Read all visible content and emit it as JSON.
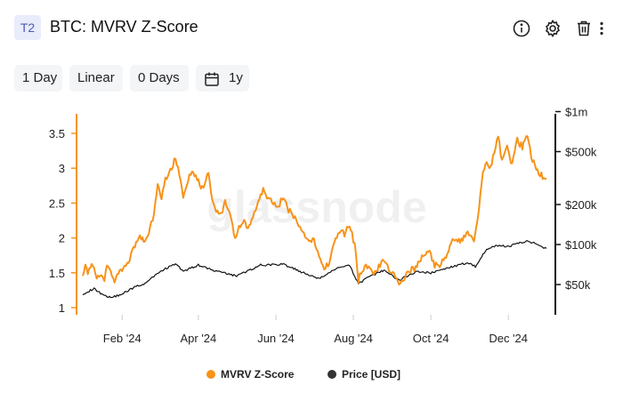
{
  "header": {
    "tag": "T2",
    "title": "BTC: MVRV Z-Score",
    "icons": [
      "info-icon",
      "gear-icon",
      "trash-icon",
      "more-vertical-icon"
    ]
  },
  "controls": {
    "resolution": "1 Day",
    "scale": "Linear",
    "moving_average": "0 Days",
    "range": "1y",
    "range_icon": "calendar-icon"
  },
  "watermark": "glassnode",
  "colors": {
    "mvrv": "#f7931a",
    "price": "#111111",
    "grid": "#e6e6e6",
    "text": "#222222"
  },
  "chart_data": {
    "type": "line",
    "title": "BTC: MVRV Z-Score",
    "x_ticks": [
      "Feb '24",
      "Apr '24",
      "Jun '24",
      "Aug '24",
      "Oct '24",
      "Dec '24"
    ],
    "x_range": [
      "2024-01-01",
      "2024-12-31"
    ],
    "y_left": {
      "ticks": [
        "1",
        "1.5",
        "2",
        "2.5",
        "3",
        "3.5"
      ],
      "range": [
        1,
        3.5
      ]
    },
    "y_right": {
      "ticks": [
        "$50k",
        "$100k",
        "$200k",
        "$500k",
        "$1m"
      ],
      "values": [
        50000,
        100000,
        200000,
        500000,
        1000000
      ],
      "scale": "log"
    },
    "legend_position": "bottom-center",
    "grid": false,
    "series": [
      {
        "name": "MVRV Z-Score",
        "axis": "left",
        "color": "#f7931a",
        "points": [
          [
            "2024-01-01",
            1.5
          ],
          [
            "2024-01-03",
            1.58
          ],
          [
            "2024-01-05",
            1.52
          ],
          [
            "2024-01-08",
            1.62
          ],
          [
            "2024-01-10",
            1.58
          ],
          [
            "2024-01-12",
            1.42
          ],
          [
            "2024-01-15",
            1.45
          ],
          [
            "2024-01-18",
            1.41
          ],
          [
            "2024-01-20",
            1.62
          ],
          [
            "2024-01-23",
            1.52
          ],
          [
            "2024-01-25",
            1.38
          ],
          [
            "2024-01-28",
            1.45
          ],
          [
            "2024-02-01",
            1.55
          ],
          [
            "2024-02-05",
            1.6
          ],
          [
            "2024-02-08",
            1.75
          ],
          [
            "2024-02-12",
            1.95
          ],
          [
            "2024-02-15",
            2.0
          ],
          [
            "2024-02-18",
            1.95
          ],
          [
            "2024-02-22",
            2.05
          ],
          [
            "2024-02-26",
            2.35
          ],
          [
            "2024-02-29",
            2.75
          ],
          [
            "2024-03-03",
            2.55
          ],
          [
            "2024-03-06",
            2.85
          ],
          [
            "2024-03-09",
            2.95
          ],
          [
            "2024-03-12",
            3.05
          ],
          [
            "2024-03-14",
            3.15
          ],
          [
            "2024-03-17",
            2.9
          ],
          [
            "2024-03-20",
            2.62
          ],
          [
            "2024-03-24",
            2.85
          ],
          [
            "2024-03-28",
            2.95
          ],
          [
            "2024-04-01",
            2.8
          ],
          [
            "2024-04-05",
            2.7
          ],
          [
            "2024-04-09",
            2.95
          ],
          [
            "2024-04-12",
            2.55
          ],
          [
            "2024-04-15",
            2.4
          ],
          [
            "2024-04-19",
            2.35
          ],
          [
            "2024-04-22",
            2.5
          ],
          [
            "2024-04-26",
            2.3
          ],
          [
            "2024-04-30",
            2.0
          ],
          [
            "2024-05-03",
            2.15
          ],
          [
            "2024-05-07",
            2.25
          ],
          [
            "2024-05-10",
            2.1
          ],
          [
            "2024-05-14",
            2.3
          ],
          [
            "2024-05-18",
            2.55
          ],
          [
            "2024-05-22",
            2.7
          ],
          [
            "2024-05-26",
            2.55
          ],
          [
            "2024-05-30",
            2.5
          ],
          [
            "2024-06-03",
            2.45
          ],
          [
            "2024-06-07",
            2.6
          ],
          [
            "2024-06-11",
            2.4
          ],
          [
            "2024-06-15",
            2.3
          ],
          [
            "2024-06-19",
            2.2
          ],
          [
            "2024-06-23",
            2.05
          ],
          [
            "2024-06-27",
            1.95
          ],
          [
            "2024-07-01",
            2.0
          ],
          [
            "2024-07-05",
            1.7
          ],
          [
            "2024-07-09",
            1.55
          ],
          [
            "2024-07-13",
            1.65
          ],
          [
            "2024-07-17",
            1.95
          ],
          [
            "2024-07-21",
            2.1
          ],
          [
            "2024-07-25",
            2.05
          ],
          [
            "2024-07-29",
            2.2
          ],
          [
            "2024-08-02",
            1.9
          ],
          [
            "2024-08-05",
            1.4
          ],
          [
            "2024-08-08",
            1.55
          ],
          [
            "2024-08-12",
            1.6
          ],
          [
            "2024-08-16",
            1.5
          ],
          [
            "2024-08-20",
            1.55
          ],
          [
            "2024-08-25",
            1.68
          ],
          [
            "2024-08-30",
            1.52
          ],
          [
            "2024-09-03",
            1.45
          ],
          [
            "2024-09-06",
            1.33
          ],
          [
            "2024-09-10",
            1.42
          ],
          [
            "2024-09-14",
            1.55
          ],
          [
            "2024-09-18",
            1.55
          ],
          [
            "2024-09-22",
            1.65
          ],
          [
            "2024-09-26",
            1.78
          ],
          [
            "2024-09-30",
            1.8
          ],
          [
            "2024-10-04",
            1.6
          ],
          [
            "2024-10-08",
            1.62
          ],
          [
            "2024-10-12",
            1.7
          ],
          [
            "2024-10-16",
            1.9
          ],
          [
            "2024-10-20",
            2.0
          ],
          [
            "2024-10-24",
            1.95
          ],
          [
            "2024-10-28",
            2.05
          ],
          [
            "2024-10-31",
            2.05
          ],
          [
            "2024-11-04",
            1.95
          ],
          [
            "2024-11-07",
            2.3
          ],
          [
            "2024-11-11",
            2.95
          ],
          [
            "2024-11-14",
            3.05
          ],
          [
            "2024-11-17",
            3.0
          ],
          [
            "2024-11-20",
            3.25
          ],
          [
            "2024-11-23",
            3.45
          ],
          [
            "2024-11-26",
            3.1
          ],
          [
            "2024-11-30",
            3.3
          ],
          [
            "2024-12-04",
            3.05
          ],
          [
            "2024-12-08",
            3.4
          ],
          [
            "2024-12-12",
            3.3
          ],
          [
            "2024-12-16",
            3.5
          ],
          [
            "2024-12-19",
            3.15
          ],
          [
            "2024-12-23",
            3.0
          ],
          [
            "2024-12-27",
            2.9
          ],
          [
            "2024-12-31",
            2.85
          ]
        ]
      },
      {
        "name": "Price [USD]",
        "axis": "right",
        "color": "#111111",
        "points": [
          [
            "2024-01-01",
            42500
          ],
          [
            "2024-01-10",
            46500
          ],
          [
            "2024-01-15",
            43000
          ],
          [
            "2024-01-23",
            39800
          ],
          [
            "2024-02-01",
            42500
          ],
          [
            "2024-02-10",
            47500
          ],
          [
            "2024-02-20",
            51500
          ],
          [
            "2024-03-01",
            62000
          ],
          [
            "2024-03-14",
            72000
          ],
          [
            "2024-03-20",
            63000
          ],
          [
            "2024-04-01",
            70000
          ],
          [
            "2024-04-15",
            63000
          ],
          [
            "2024-05-01",
            58000
          ],
          [
            "2024-05-20",
            70000
          ],
          [
            "2024-06-07",
            71000
          ],
          [
            "2024-06-24",
            60500
          ],
          [
            "2024-07-05",
            55000
          ],
          [
            "2024-07-20",
            67500
          ],
          [
            "2024-07-29",
            69000
          ],
          [
            "2024-08-05",
            51000
          ],
          [
            "2024-08-15",
            58000
          ],
          [
            "2024-08-25",
            64000
          ],
          [
            "2024-09-06",
            54000
          ],
          [
            "2024-09-20",
            63000
          ],
          [
            "2024-10-01",
            61000
          ],
          [
            "2024-10-15",
            67000
          ],
          [
            "2024-10-29",
            72500
          ],
          [
            "2024-11-05",
            68500
          ],
          [
            "2024-11-13",
            90000
          ],
          [
            "2024-11-22",
            98500
          ],
          [
            "2024-12-01",
            96000
          ],
          [
            "2024-12-05",
            100000
          ],
          [
            "2024-12-17",
            106000
          ],
          [
            "2024-12-25",
            99000
          ],
          [
            "2024-12-31",
            93500
          ]
        ]
      }
    ]
  }
}
